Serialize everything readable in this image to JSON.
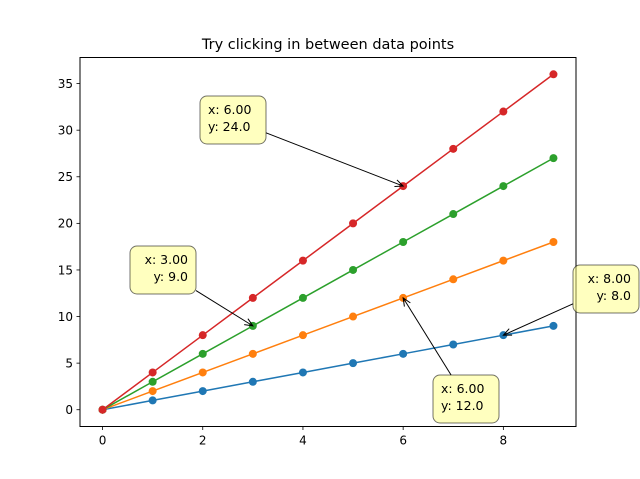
{
  "chart_data": {
    "type": "line",
    "title": "Try clicking in between data points",
    "xlabel": "",
    "ylabel": "",
    "xlim": [
      -0.45,
      9.45
    ],
    "ylim": [
      -1.8,
      37.8
    ],
    "xticks": [
      0,
      2,
      4,
      6,
      8
    ],
    "yticks": [
      0,
      5,
      10,
      15,
      20,
      25,
      30,
      35
    ],
    "grid": false,
    "x": [
      0,
      1,
      2,
      3,
      4,
      5,
      6,
      7,
      8,
      9
    ],
    "series": [
      {
        "color": "#1f77b4",
        "values": [
          0,
          1,
          2,
          3,
          4,
          5,
          6,
          7,
          8,
          9
        ]
      },
      {
        "color": "#ff7f0e",
        "values": [
          0,
          2,
          4,
          6,
          8,
          10,
          12,
          14,
          16,
          18
        ]
      },
      {
        "color": "#2ca02c",
        "values": [
          0,
          3,
          6,
          9,
          12,
          15,
          18,
          21,
          24,
          27
        ]
      },
      {
        "color": "#d62728",
        "values": [
          0,
          4,
          8,
          12,
          16,
          20,
          24,
          28,
          32,
          36
        ]
      }
    ],
    "annotations": [
      {
        "point": [
          6,
          24
        ],
        "lines": [
          "x: 6.00",
          "y: 24.0"
        ]
      },
      {
        "point": [
          3,
          9
        ],
        "lines": [
          "x: 3.00",
          "y: 9.0"
        ]
      },
      {
        "point": [
          6,
          12
        ],
        "lines": [
          "x: 6.00",
          "y: 12.0"
        ]
      },
      {
        "point": [
          8,
          8
        ],
        "lines": [
          "x: 8.00",
          "y: 8.0"
        ]
      }
    ],
    "annotation_box_color": "#ffff80"
  }
}
